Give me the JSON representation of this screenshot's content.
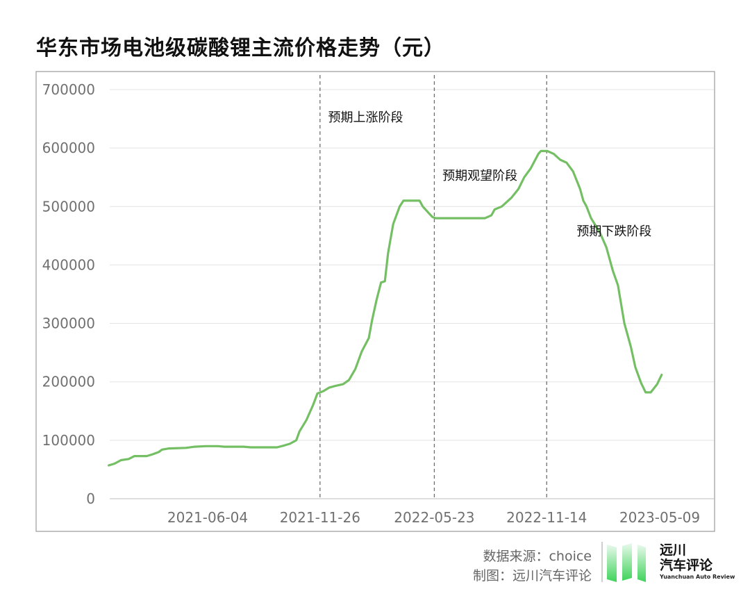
{
  "title": "华东市场电池级碳酸锂主流价格走势（元）",
  "footer": {
    "source": "数据来源：choice",
    "maker": "制图：远川汽车评论"
  },
  "brand": {
    "name_line1": "远川",
    "name_line2": "汽车评论",
    "english": "Yuanchuan Auto Review",
    "accent_color": "#5bd36a"
  },
  "chart_data": {
    "type": "line",
    "title": "华东市场电池级碳酸锂主流价格走势（元）",
    "line_color": "#74bf64",
    "ylim": [
      0,
      700000
    ],
    "y_ticks": [
      "0",
      "100000",
      "200000",
      "300000",
      "400000",
      "500000",
      "600000",
      "700000"
    ],
    "x_range": [
      "2020-12-30",
      "2023-05-20"
    ],
    "x_ticks": [
      "2021-06-04",
      "2021-11-26",
      "2022-05-23",
      "2022-11-14",
      "2023-05-09"
    ],
    "grid": true,
    "phase_lines": [
      "2021-11-26",
      "2022-05-23",
      "2022-11-14"
    ],
    "annotations": [
      {
        "text": "预期上涨阶段",
        "date": "2021-11-30",
        "value": 655000
      },
      {
        "text": "预期观望阶段",
        "date": "2022-05-27",
        "value": 555000
      },
      {
        "text": "预期下跌阶段",
        "date": "2022-12-22",
        "value": 460000
      }
    ],
    "series": [
      {
        "name": "",
        "points": [
          [
            "2021-01-01",
            57000
          ],
          [
            "2021-01-10",
            60000
          ],
          [
            "2021-01-20",
            66000
          ],
          [
            "2021-02-01",
            68000
          ],
          [
            "2021-02-10",
            73000
          ],
          [
            "2021-03-01",
            73000
          ],
          [
            "2021-03-10",
            76000
          ],
          [
            "2021-03-20",
            80000
          ],
          [
            "2021-03-25",
            84000
          ],
          [
            "2021-04-05",
            86000
          ],
          [
            "2021-05-01",
            87000
          ],
          [
            "2021-05-15",
            89000
          ],
          [
            "2021-06-01",
            90000
          ],
          [
            "2021-06-20",
            90000
          ],
          [
            "2021-06-30",
            89000
          ],
          [
            "2021-07-30",
            89000
          ],
          [
            "2021-08-10",
            88000
          ],
          [
            "2021-09-01",
            88000
          ],
          [
            "2021-09-20",
            88000
          ],
          [
            "2021-10-01",
            91000
          ],
          [
            "2021-10-10",
            94000
          ],
          [
            "2021-10-20",
            100000
          ],
          [
            "2021-10-25",
            115000
          ],
          [
            "2021-11-05",
            135000
          ],
          [
            "2021-11-15",
            160000
          ],
          [
            "2021-11-22",
            180000
          ],
          [
            "2021-12-01",
            184000
          ],
          [
            "2021-12-10",
            190000
          ],
          [
            "2021-12-20",
            193000
          ],
          [
            "2022-01-01",
            196000
          ],
          [
            "2022-01-10",
            203000
          ],
          [
            "2022-01-20",
            222000
          ],
          [
            "2022-01-30",
            252000
          ],
          [
            "2022-02-10",
            275000
          ],
          [
            "2022-02-15",
            305000
          ],
          [
            "2022-02-22",
            340000
          ],
          [
            "2022-03-01",
            370000
          ],
          [
            "2022-03-07",
            372000
          ],
          [
            "2022-03-12",
            420000
          ],
          [
            "2022-03-20",
            470000
          ],
          [
            "2022-03-30",
            500000
          ],
          [
            "2022-04-05",
            510000
          ],
          [
            "2022-04-15",
            510000
          ],
          [
            "2022-04-30",
            510000
          ],
          [
            "2022-05-05",
            500000
          ],
          [
            "2022-05-15",
            488000
          ],
          [
            "2022-05-20",
            482000
          ],
          [
            "2022-05-25",
            480000
          ],
          [
            "2022-06-30",
            480000
          ],
          [
            "2022-08-10",
            480000
          ],
          [
            "2022-08-20",
            485000
          ],
          [
            "2022-08-25",
            495000
          ],
          [
            "2022-09-05",
            500000
          ],
          [
            "2022-09-20",
            515000
          ],
          [
            "2022-10-01",
            530000
          ],
          [
            "2022-10-10",
            550000
          ],
          [
            "2022-10-20",
            565000
          ],
          [
            "2022-11-01",
            590000
          ],
          [
            "2022-11-05",
            595000
          ],
          [
            "2022-11-15",
            595000
          ],
          [
            "2022-11-25",
            590000
          ],
          [
            "2022-12-05",
            580000
          ],
          [
            "2022-12-15",
            575000
          ],
          [
            "2022-12-25",
            560000
          ],
          [
            "2023-01-05",
            530000
          ],
          [
            "2023-01-10",
            510000
          ],
          [
            "2023-01-15",
            500000
          ],
          [
            "2023-01-22",
            480000
          ],
          [
            "2023-02-05",
            455000
          ],
          [
            "2023-02-15",
            430000
          ],
          [
            "2023-02-25",
            390000
          ],
          [
            "2023-03-05",
            365000
          ],
          [
            "2023-03-15",
            300000
          ],
          [
            "2023-03-25",
            260000
          ],
          [
            "2023-04-01",
            225000
          ],
          [
            "2023-04-10",
            198000
          ],
          [
            "2023-04-17",
            182000
          ],
          [
            "2023-04-25",
            182000
          ],
          [
            "2023-05-05",
            196000
          ],
          [
            "2023-05-12",
            212000
          ]
        ]
      }
    ]
  }
}
